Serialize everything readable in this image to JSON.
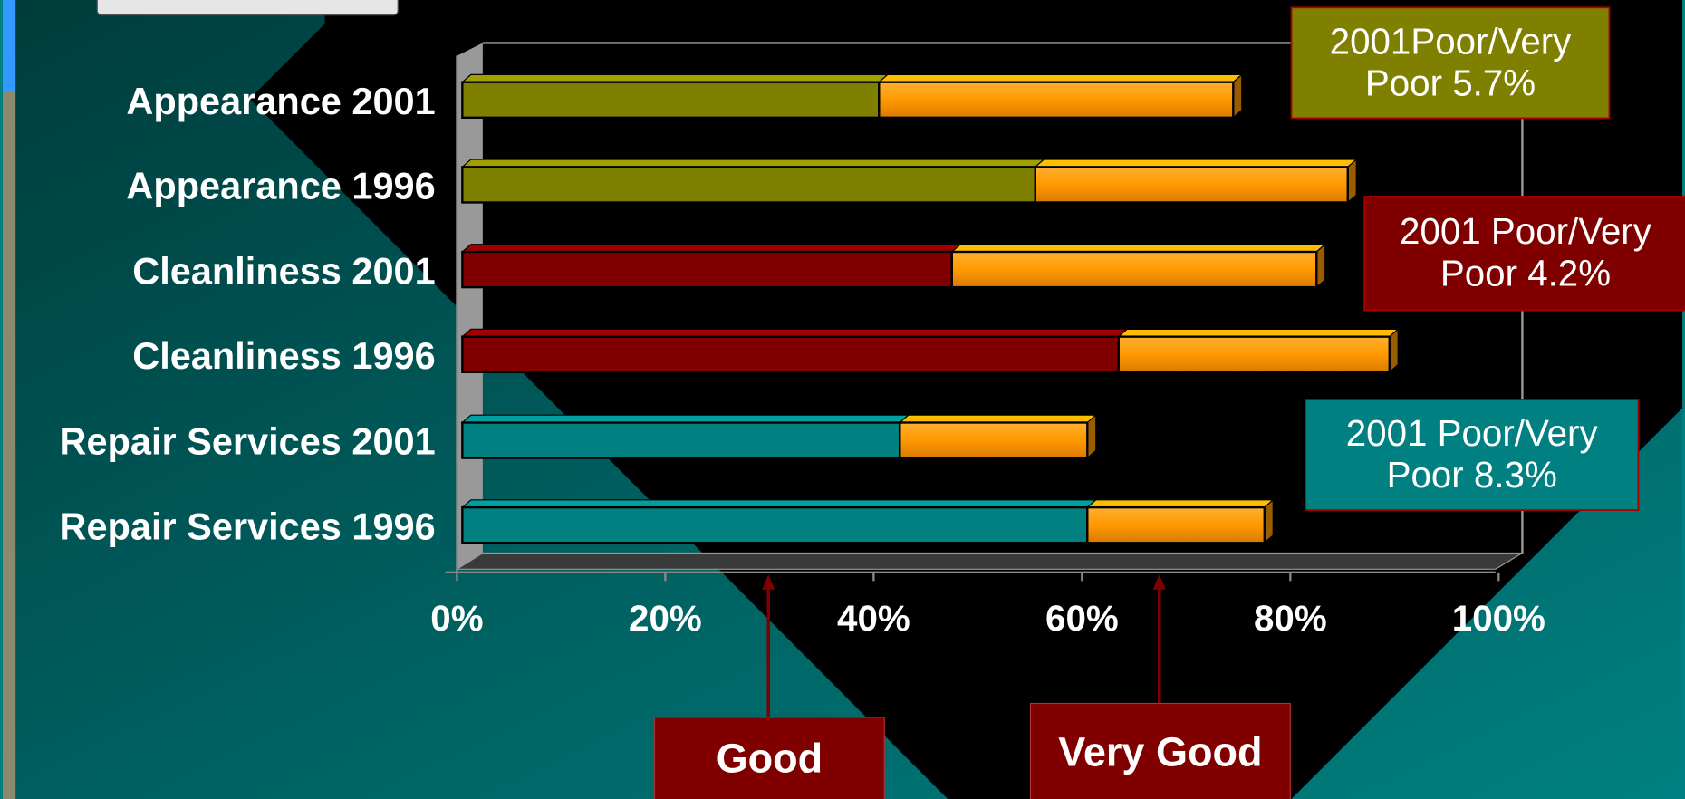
{
  "chart_data": {
    "type": "bar",
    "orientation": "horizontal",
    "stacked": true,
    "categories": [
      "Appearance 2001",
      "Appearance 1996",
      "Cleanliness 2001",
      "Cleanliness 1996",
      "Repair Services 2001",
      "Repair Services 1996"
    ],
    "series": [
      {
        "name": "Good",
        "colors": [
          "#808000",
          "#808000",
          "#800000",
          "#800000",
          "#008080",
          "#008080"
        ],
        "values": [
          40,
          55,
          47,
          63,
          42,
          60
        ]
      },
      {
        "name": "Very Good",
        "color": "#ff9900",
        "values": [
          34,
          30,
          35,
          26,
          18,
          17
        ]
      }
    ],
    "xlim": [
      0,
      100
    ],
    "xticks": [
      {
        "value": 0,
        "label": "0%"
      },
      {
        "value": 20,
        "label": "20%"
      },
      {
        "value": 40,
        "label": "40%"
      },
      {
        "value": 60,
        "label": "60%"
      },
      {
        "value": 80,
        "label": "80%"
      },
      {
        "value": 100,
        "label": "100%"
      }
    ],
    "annotations": [
      {
        "text": "2001Poor/Very Poor 5.7%",
        "color": "#808000"
      },
      {
        "text": "2001 Poor/Very Poor 4.2%",
        "color": "#800000"
      },
      {
        "text": "2001 Poor/Very Poor 8.3%",
        "color": "#008080"
      }
    ]
  }
}
